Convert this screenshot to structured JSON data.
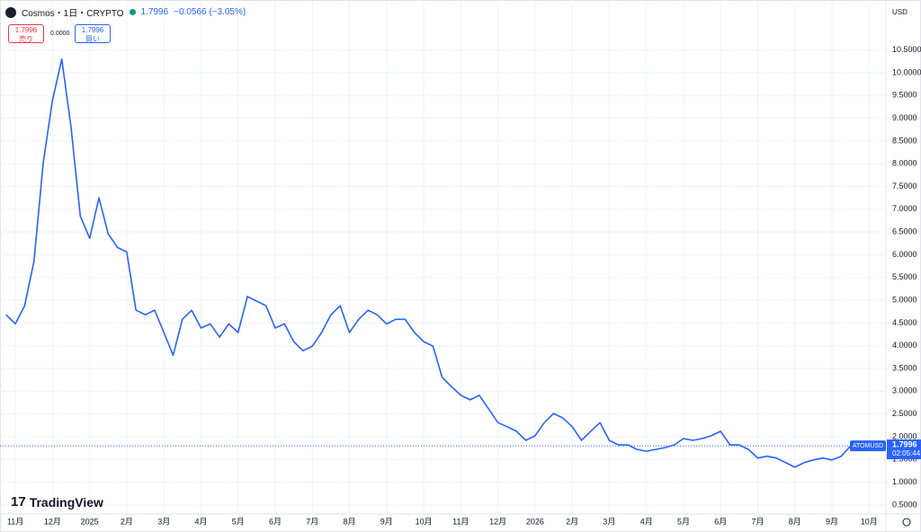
{
  "header": {
    "symbol": "Cosmos・1日・CRYPTO",
    "price": "1.7996",
    "change": "−0.0566 (−3.05%)",
    "sell_price": "1.7996",
    "sell_label": "売り",
    "spread": "0.0000",
    "buy_price": "1.7996",
    "buy_label": "買い",
    "currency": "USD",
    "logo": "TradingView"
  },
  "chart_data": {
    "type": "line",
    "categories": [
      null,
      "11月",
      null,
      null,
      null,
      "12月",
      null,
      null,
      null,
      "2025",
      null,
      null,
      null,
      "2月",
      null,
      null,
      null,
      "3月",
      null,
      null,
      null,
      "4月",
      null,
      null,
      null,
      "5月",
      null,
      null,
      null,
      "6月",
      null,
      null,
      null,
      "7月",
      null,
      null,
      null,
      "8月",
      null,
      null,
      null,
      "9月",
      null,
      null,
      null,
      "10月",
      null,
      null,
      null,
      "11月",
      null,
      null,
      null,
      "12月",
      null,
      null,
      null,
      "2026",
      null,
      null,
      null,
      "2月",
      null,
      null,
      null,
      "3月",
      null,
      null,
      null,
      "4月",
      null,
      null,
      null,
      "5月",
      null,
      null,
      null,
      "6月",
      null,
      null,
      null,
      "7月",
      null,
      null,
      null,
      "8月",
      null,
      null,
      null,
      "9月",
      null,
      null,
      null,
      "10月"
    ],
    "series": [
      {
        "name": "ATOMUSD",
        "color": "#2962ff",
        "values": [
          4.68,
          4.48,
          4.88,
          5.86,
          8.03,
          9.4,
          10.3,
          8.8,
          6.85,
          6.36,
          7.25,
          6.46,
          6.16,
          6.06,
          4.78,
          4.68,
          4.78,
          4.29,
          3.79,
          4.58,
          4.78,
          4.39,
          4.48,
          4.19,
          4.48,
          4.29,
          5.08,
          4.98,
          4.88,
          4.39,
          4.48,
          4.09,
          3.89,
          3.99,
          4.29,
          4.68,
          4.88,
          4.29,
          4.58,
          4.78,
          4.68,
          4.48,
          4.58,
          4.58,
          4.29,
          4.09,
          3.99,
          3.3,
          3.1,
          2.91,
          2.81,
          2.91,
          2.61,
          2.31,
          2.22,
          2.12,
          1.92,
          2.02,
          2.31,
          2.51,
          2.41,
          2.22,
          1.92,
          2.12,
          2.31,
          1.92,
          1.82,
          1.82,
          1.72,
          1.68,
          1.72,
          1.76,
          1.82,
          1.96,
          1.92,
          1.96,
          2.02,
          2.12,
          1.82,
          1.82,
          1.72,
          1.53,
          1.57,
          1.53,
          1.43,
          1.33,
          1.43,
          1.49,
          1.53,
          1.49,
          1.57,
          1.7996,
          null,
          null
        ]
      }
    ],
    "last_label": "1.7996",
    "countdown": "02:05:44",
    "ylim": [
      0.3,
      11.6
    ],
    "yticks": [
      {
        "value": 0.5,
        "label": "0.5000"
      },
      {
        "value": 1,
        "label": "1.0000"
      },
      {
        "value": 1.5,
        "label": "1.5000"
      },
      {
        "value": 2,
        "label": "2.0000"
      },
      {
        "value": 2.5,
        "label": "2.5000"
      },
      {
        "value": 3,
        "label": "3.0000"
      },
      {
        "value": 3.5,
        "label": "3.5000"
      },
      {
        "value": 4,
        "label": "4.0000"
      },
      {
        "value": 4.5,
        "label": "4.5000"
      },
      {
        "value": 5,
        "label": "5.0000"
      },
      {
        "value": 5.5,
        "label": "5.5000"
      },
      {
        "value": 6,
        "label": "6.0000"
      },
      {
        "value": 6.5,
        "label": "6.5000"
      },
      {
        "value": 7,
        "label": "7.0000"
      },
      {
        "value": 7.5,
        "label": "7.5000"
      },
      {
        "value": 8,
        "label": "8.0000"
      },
      {
        "value": 8.5,
        "label": "8.5000"
      },
      {
        "value": 9,
        "label": "9.0000"
      },
      {
        "value": 9.5,
        "label": "9.5000"
      },
      {
        "value": 10,
        "label": "10.0000"
      },
      {
        "value": 10.5,
        "label": "10.5000"
      }
    ],
    "grid": true
  }
}
